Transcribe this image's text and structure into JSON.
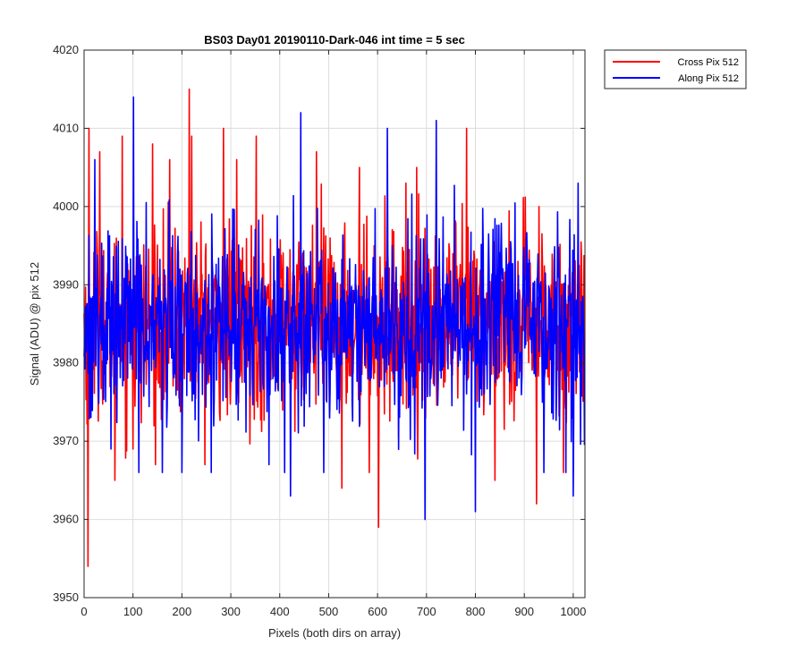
{
  "chart_data": {
    "type": "line",
    "title": "BS03 Day01 20190110-Dark-046 int time = 5 sec",
    "xlabel": "Pixels (both dirs on array)",
    "ylabel": "Signal (ADU) @ pix 512",
    "xlim": [
      0,
      1024
    ],
    "ylim": [
      3950,
      4020
    ],
    "xticks": [
      0,
      100,
      200,
      300,
      400,
      500,
      600,
      700,
      800,
      900,
      1000
    ],
    "yticks": [
      3950,
      3960,
      3970,
      3980,
      3990,
      4000,
      4010,
      4020
    ],
    "grid": true,
    "legend_position": "outside-top-right",
    "series": [
      {
        "name": "Cross Pix 512",
        "color": "#ff0000",
        "mean": 3985,
        "noise_std": 6,
        "num_points": 1024,
        "extremes": [
          {
            "x": 8,
            "y": 3954
          },
          {
            "x": 10,
            "y": 4010
          },
          {
            "x": 32,
            "y": 4007
          },
          {
            "x": 63,
            "y": 3965
          },
          {
            "x": 78,
            "y": 4009
          },
          {
            "x": 100,
            "y": 3969
          },
          {
            "x": 140,
            "y": 4008
          },
          {
            "x": 175,
            "y": 4006
          },
          {
            "x": 215,
            "y": 4015
          },
          {
            "x": 220,
            "y": 4009
          },
          {
            "x": 285,
            "y": 4010
          },
          {
            "x": 312,
            "y": 4006
          },
          {
            "x": 352,
            "y": 4009
          },
          {
            "x": 475,
            "y": 4007
          },
          {
            "x": 527,
            "y": 3964
          },
          {
            "x": 563,
            "y": 4005
          },
          {
            "x": 583,
            "y": 3966
          },
          {
            "x": 602,
            "y": 3959
          },
          {
            "x": 680,
            "y": 4005
          },
          {
            "x": 782,
            "y": 4010
          },
          {
            "x": 840,
            "y": 3965
          },
          {
            "x": 925,
            "y": 3962
          },
          {
            "x": 980,
            "y": 3966
          }
        ]
      },
      {
        "name": "Along Pix 512",
        "color": "#0000ff",
        "mean": 3985,
        "noise_std": 6,
        "num_points": 1024,
        "extremes": [
          {
            "x": 22,
            "y": 4006
          },
          {
            "x": 101,
            "y": 4014
          },
          {
            "x": 112,
            "y": 3966
          },
          {
            "x": 160,
            "y": 3966
          },
          {
            "x": 200,
            "y": 3966
          },
          {
            "x": 260,
            "y": 3966
          },
          {
            "x": 410,
            "y": 3966
          },
          {
            "x": 422,
            "y": 3963
          },
          {
            "x": 443,
            "y": 4012
          },
          {
            "x": 490,
            "y": 3966
          },
          {
            "x": 620,
            "y": 4010
          },
          {
            "x": 697,
            "y": 3960
          },
          {
            "x": 720,
            "y": 4011
          },
          {
            "x": 800,
            "y": 3961
          },
          {
            "x": 940,
            "y": 3966
          },
          {
            "x": 985,
            "y": 3966
          },
          {
            "x": 1000,
            "y": 3963
          },
          {
            "x": 1010,
            "y": 4003
          }
        ]
      }
    ]
  }
}
